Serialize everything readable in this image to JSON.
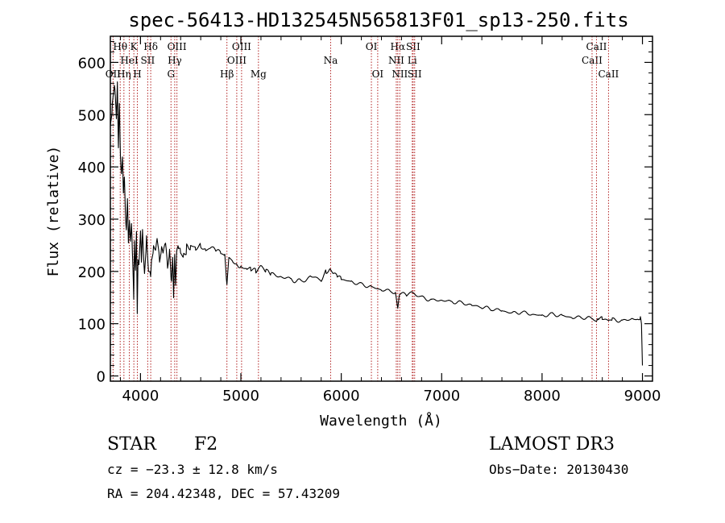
{
  "chart_data": {
    "type": "line",
    "title": "spec-56413-HD132545N565813F01_sp13-250.fits",
    "xlabel": "Wavelength (Å)",
    "ylabel": "Flux (relative)",
    "xlim": [
      3700,
      9100
    ],
    "ylim": [
      -10,
      650
    ],
    "xticks": [
      4000,
      5000,
      6000,
      7000,
      8000,
      9000
    ],
    "yticks": [
      0,
      100,
      200,
      300,
      400,
      500,
      600
    ],
    "series": [
      {
        "name": "flux",
        "x": [
          3700,
          3720,
          3740,
          3750,
          3760,
          3770,
          3780,
          3790,
          3800,
          3810,
          3820,
          3830,
          3840,
          3850,
          3860,
          3870,
          3880,
          3890,
          3900,
          3910,
          3920,
          3933,
          3940,
          3950,
          3960,
          3968,
          3975,
          3985,
          4000,
          4010,
          4020,
          4040,
          4060,
          4080,
          4101,
          4110,
          4130,
          4150,
          4170,
          4190,
          4210,
          4230,
          4250,
          4270,
          4290,
          4310,
          4320,
          4330,
          4340,
          4350,
          4360,
          4380,
          4400,
          4430,
          4460,
          4500,
          4550,
          4600,
          4650,
          4700,
          4750,
          4800,
          4840,
          4861,
          4880,
          4920,
          4960,
          5000,
          5060,
          5100,
          5150,
          5200,
          5250,
          5300,
          5400,
          5500,
          5600,
          5700,
          5800,
          5850,
          5890,
          5920,
          5960,
          6000,
          6100,
          6200,
          6300,
          6400,
          6500,
          6540,
          6563,
          6580,
          6650,
          6700,
          6800,
          6900,
          7000,
          7100,
          7200,
          7300,
          7400,
          7500,
          7600,
          7700,
          7800,
          7900,
          8000,
          8100,
          8200,
          8300,
          8400,
          8500,
          8542,
          8560,
          8600,
          8662,
          8700,
          8800,
          8900,
          8950,
          8980,
          8990,
          9000
        ],
        "y": [
          480,
          520,
          560,
          545,
          500,
          560,
          430,
          520,
          420,
          380,
          410,
          350,
          390,
          320,
          280,
          340,
          260,
          300,
          250,
          280,
          230,
          150,
          260,
          200,
          280,
          130,
          230,
          210,
          270,
          215,
          280,
          190,
          260,
          200,
          200,
          230,
          250,
          240,
          260,
          220,
          240,
          230,
          250,
          210,
          245,
          180,
          230,
          160,
          240,
          170,
          230,
          240,
          235,
          230,
          245,
          250,
          245,
          250,
          240,
          245,
          240,
          235,
          230,
          170,
          225,
          220,
          215,
          210,
          205,
          205,
          200,
          210,
          200,
          195,
          190,
          185,
          180,
          190,
          185,
          200,
          205,
          195,
          190,
          185,
          180,
          175,
          170,
          165,
          162,
          160,
          130,
          158,
          155,
          160,
          150,
          145,
          145,
          142,
          140,
          135,
          132,
          128,
          125,
          120,
          122,
          118,
          115,
          118,
          115,
          112,
          112,
          110,
          105,
          110,
          110,
          105,
          108,
          105,
          110,
          108,
          112,
          100,
          20
        ]
      }
    ],
    "spectral_lines": [
      {
        "label": "OII",
        "x": 3727,
        "row": 3
      },
      {
        "label": "Hθ",
        "x": 3798,
        "row": 1
      },
      {
        "label": "Hη",
        "x": 3835,
        "row": 3
      },
      {
        "label": "HeI",
        "x": 3889,
        "row": 2
      },
      {
        "label": "K",
        "x": 3934,
        "row": 1
      },
      {
        "label": "SII",
        "x": 4072,
        "row": 2
      },
      {
        "label": "H",
        "x": 3969,
        "row": 3
      },
      {
        "label": "Hδ",
        "x": 4102,
        "row": 1
      },
      {
        "label": "G",
        "x": 4304,
        "row": 3
      },
      {
        "label": "OIII",
        "x": 4363,
        "row": 1
      },
      {
        "label": "Hγ",
        "x": 4341,
        "row": 2
      },
      {
        "label": "Hβ",
        "x": 4861,
        "row": 3
      },
      {
        "label": "OIII",
        "x": 5007,
        "row": 1
      },
      {
        "label": "OIII",
        "x": 4959,
        "row": 2
      },
      {
        "label": "Mg",
        "x": 5175,
        "row": 3
      },
      {
        "label": "Na",
        "x": 5894,
        "row": 2
      },
      {
        "label": "OI",
        "x": 6300,
        "row": 1
      },
      {
        "label": "OI",
        "x": 6363,
        "row": 3
      },
      {
        "label": "Hα",
        "x": 6563,
        "row": 1
      },
      {
        "label": "NII",
        "x": 6548,
        "row": 2
      },
      {
        "label": "NII",
        "x": 6583,
        "row": 3
      },
      {
        "label": "SII",
        "x": 6716,
        "row": 1
      },
      {
        "label": "Li",
        "x": 6707,
        "row": 2
      },
      {
        "label": "SII",
        "x": 6731,
        "row": 3
      },
      {
        "label": "CaII",
        "x": 8498,
        "row": 2
      },
      {
        "label": "CaII",
        "x": 8542,
        "row": 1
      },
      {
        "label": "CaII",
        "x": 8662,
        "row": 3
      }
    ]
  },
  "info": {
    "object_type": "STAR",
    "subclass": "F2",
    "survey": "LAMOST DR3",
    "cz": "cz = −23.3 ± 12.8 km/s",
    "obs_date": "Obs−Date: 20130430",
    "radec": "RA = 204.42348, DEC =  57.43209"
  },
  "colors": {
    "line_marker": "#b22222",
    "spectrum": "#000000"
  }
}
